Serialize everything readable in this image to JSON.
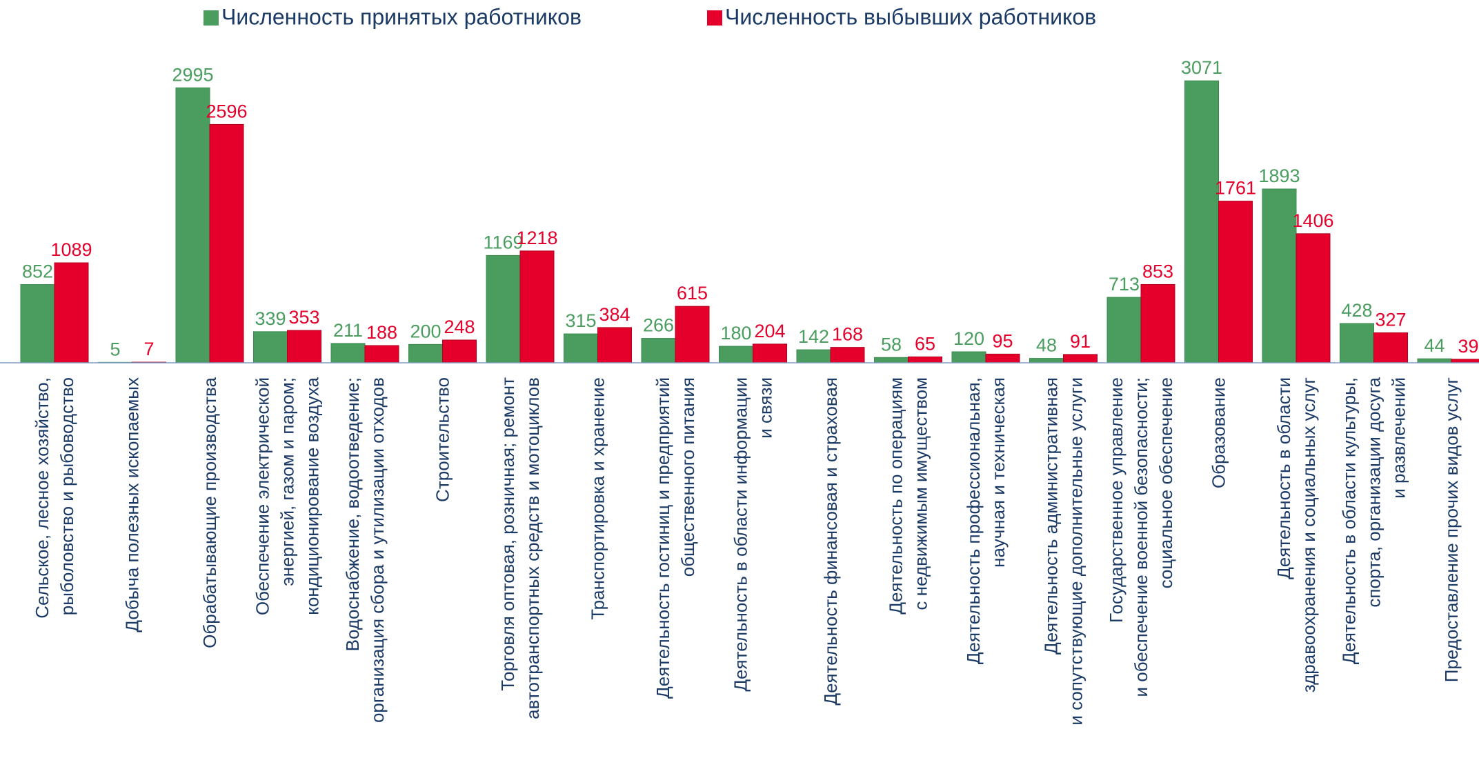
{
  "chart_data": {
    "type": "bar",
    "categories": [
      "Сельское, лесное хозяйство,\nрыболовство и рыбоводство",
      "Добыча полезных ископаемых",
      "Обрабатывающие производства",
      "Обеспечение электрической\nэнергией, газом и паром;\nкондиционирование воздуха",
      "Водоснабжение, водоотведение;\nорганизация сбора и утилизации отходов",
      "Строительство",
      "Торговля оптовая, розничная; ремонт\nавтотранспортных средств и мотоциклов",
      "Транспортировка и хранение",
      "Деятельность гостиниц и предприятий\nобщественного питания",
      "Деятельность в области информации\nи связи",
      "Деятельность финансовая и страховая",
      "Деятельность по операциям\nс недвижимым имуществом",
      "Деятельность профессиональная,\nнаучная и техническая",
      "Деятельность административная\nи сопутствующие дополнительные услуги",
      "Государственное управление\nи обеспечение военной безопасности;\nсоциальное обеспечение",
      "Образование",
      "Деятельность в области\nздравоохранения и социальных услуг",
      "Деятельность в области культуры,\nспорта, организации досуга\nи развлечений",
      "Предоставление прочих видов услуг"
    ],
    "series": [
      {
        "name": "Численность принятых работников",
        "color": "#4a9d5f",
        "values": [
          852,
          5,
          2995,
          339,
          211,
          200,
          1169,
          315,
          266,
          180,
          142,
          58,
          120,
          48,
          713,
          3071,
          1893,
          428,
          44
        ]
      },
      {
        "name": "Численность выбывших работников",
        "color": "#e4002b",
        "values": [
          1089,
          7,
          2596,
          353,
          188,
          248,
          1218,
          384,
          615,
          204,
          168,
          65,
          95,
          91,
          853,
          1761,
          1406,
          327,
          39
        ]
      }
    ],
    "ylim": [
      0,
      3200
    ]
  }
}
